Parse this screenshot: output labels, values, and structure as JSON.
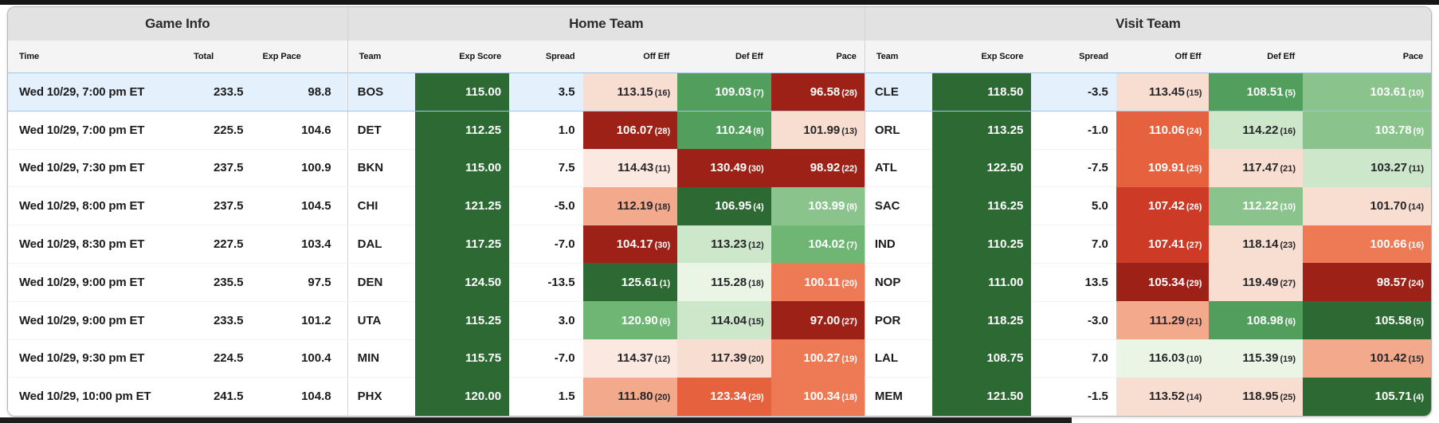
{
  "sections": [
    "Game Info",
    "Home Team",
    "Visit Team"
  ],
  "headers": {
    "game": [
      "Time",
      "Total",
      "Exp Pace"
    ],
    "team": [
      "Team",
      "Exp Score",
      "Spread",
      "Off Eff",
      "Def Eff",
      "Pace"
    ]
  },
  "palette": {
    "exp_score_bg": "#2d6a33",
    "selected_row_bg": "#e4f1fd",
    "selected_row_border": "#a2c6ea",
    "dark_green": "#2d6a33",
    "green": "#529e5c",
    "mid_green": "#6fb674",
    "light_green": "#8ac48c",
    "pale_green": "#cde7cb",
    "mint": "#eaf5e5",
    "dark_red": "#9d2116",
    "strong_red": "#cd3a25",
    "orange_red": "#e6613e",
    "orange": "#ee7a55",
    "salmon": "#f2a98c",
    "pale_pink": "#f8ddd1",
    "faint_pink": "#fbe9e1"
  },
  "rows": [
    {
      "selected": true,
      "time": "Wed 10/29, 7:00 pm ET",
      "total": "233.5",
      "exp_pace": "98.8",
      "home": {
        "team": "BOS",
        "exp_score": "115.00",
        "spread": "3.5",
        "off": {
          "v": "113.15",
          "r": "(16)",
          "bg": "#f8ddd1",
          "fg": "dark"
        },
        "def": {
          "v": "109.03",
          "r": "(7)",
          "bg": "#529e5c",
          "fg": "light"
        },
        "pace": {
          "v": "96.58",
          "r": "(28)",
          "bg": "#9d2116",
          "fg": "light"
        }
      },
      "visit": {
        "team": "CLE",
        "exp_score": "118.50",
        "spread": "-3.5",
        "off": {
          "v": "113.45",
          "r": "(15)",
          "bg": "#f8ddd1",
          "fg": "dark"
        },
        "def": {
          "v": "108.51",
          "r": "(5)",
          "bg": "#529e5c",
          "fg": "light"
        },
        "pace": {
          "v": "103.61",
          "r": "(10)",
          "bg": "#8ac48c",
          "fg": "light"
        }
      }
    },
    {
      "selected": false,
      "time": "Wed 10/29, 7:00 pm ET",
      "total": "225.5",
      "exp_pace": "104.6",
      "home": {
        "team": "DET",
        "exp_score": "112.25",
        "spread": "1.0",
        "off": {
          "v": "106.07",
          "r": "(28)",
          "bg": "#9d2116",
          "fg": "light"
        },
        "def": {
          "v": "110.24",
          "r": "(8)",
          "bg": "#529e5c",
          "fg": "light"
        },
        "pace": {
          "v": "101.99",
          "r": "(13)",
          "bg": "#f8ddd1",
          "fg": "dark"
        }
      },
      "visit": {
        "team": "ORL",
        "exp_score": "113.25",
        "spread": "-1.0",
        "off": {
          "v": "110.06",
          "r": "(24)",
          "bg": "#e6613e",
          "fg": "light"
        },
        "def": {
          "v": "114.22",
          "r": "(16)",
          "bg": "#cde7cb",
          "fg": "dark"
        },
        "pace": {
          "v": "103.78",
          "r": "(9)",
          "bg": "#8ac48c",
          "fg": "light"
        }
      }
    },
    {
      "selected": false,
      "time": "Wed 10/29, 7:30 pm ET",
      "total": "237.5",
      "exp_pace": "100.9",
      "home": {
        "team": "BKN",
        "exp_score": "115.00",
        "spread": "7.5",
        "off": {
          "v": "114.43",
          "r": "(11)",
          "bg": "#fbe9e1",
          "fg": "dark"
        },
        "def": {
          "v": "130.49",
          "r": "(30)",
          "bg": "#9d2116",
          "fg": "light"
        },
        "pace": {
          "v": "98.92",
          "r": "(22)",
          "bg": "#9d2116",
          "fg": "light"
        }
      },
      "visit": {
        "team": "ATL",
        "exp_score": "122.50",
        "spread": "-7.5",
        "off": {
          "v": "109.91",
          "r": "(25)",
          "bg": "#e6613e",
          "fg": "light"
        },
        "def": {
          "v": "117.47",
          "r": "(21)",
          "bg": "#f8ddd1",
          "fg": "dark"
        },
        "pace": {
          "v": "103.27",
          "r": "(11)",
          "bg": "#cde7cb",
          "fg": "dark"
        }
      }
    },
    {
      "selected": false,
      "time": "Wed 10/29, 8:00 pm ET",
      "total": "237.5",
      "exp_pace": "104.5",
      "home": {
        "team": "CHI",
        "exp_score": "121.25",
        "spread": "-5.0",
        "off": {
          "v": "112.19",
          "r": "(18)",
          "bg": "#f2a98c",
          "fg": "dark"
        },
        "def": {
          "v": "106.95",
          "r": "(4)",
          "bg": "#2d6a33",
          "fg": "light"
        },
        "pace": {
          "v": "103.99",
          "r": "(8)",
          "bg": "#8ac48c",
          "fg": "light"
        }
      },
      "visit": {
        "team": "SAC",
        "exp_score": "116.25",
        "spread": "5.0",
        "off": {
          "v": "107.42",
          "r": "(26)",
          "bg": "#cd3a25",
          "fg": "light"
        },
        "def": {
          "v": "112.22",
          "r": "(10)",
          "bg": "#8ac48c",
          "fg": "light"
        },
        "pace": {
          "v": "101.70",
          "r": "(14)",
          "bg": "#f8ddd1",
          "fg": "dark"
        }
      }
    },
    {
      "selected": false,
      "time": "Wed 10/29, 8:30 pm ET",
      "total": "227.5",
      "exp_pace": "103.4",
      "home": {
        "team": "DAL",
        "exp_score": "117.25",
        "spread": "-7.0",
        "off": {
          "v": "104.17",
          "r": "(30)",
          "bg": "#9d2116",
          "fg": "light"
        },
        "def": {
          "v": "113.23",
          "r": "(12)",
          "bg": "#cde7cb",
          "fg": "dark"
        },
        "pace": {
          "v": "104.02",
          "r": "(7)",
          "bg": "#6fb674",
          "fg": "light"
        }
      },
      "visit": {
        "team": "IND",
        "exp_score": "110.25",
        "spread": "7.0",
        "off": {
          "v": "107.41",
          "r": "(27)",
          "bg": "#cd3a25",
          "fg": "light"
        },
        "def": {
          "v": "118.14",
          "r": "(23)",
          "bg": "#f8ddd1",
          "fg": "dark"
        },
        "pace": {
          "v": "100.66",
          "r": "(16)",
          "bg": "#ee7a55",
          "fg": "light"
        }
      }
    },
    {
      "selected": false,
      "time": "Wed 10/29, 9:00 pm ET",
      "total": "235.5",
      "exp_pace": "97.5",
      "home": {
        "team": "DEN",
        "exp_score": "124.50",
        "spread": "-13.5",
        "off": {
          "v": "125.61",
          "r": "(1)",
          "bg": "#2d6a33",
          "fg": "light"
        },
        "def": {
          "v": "115.28",
          "r": "(18)",
          "bg": "#eaf5e5",
          "fg": "dark"
        },
        "pace": {
          "v": "100.11",
          "r": "(20)",
          "bg": "#ee7a55",
          "fg": "light"
        }
      },
      "visit": {
        "team": "NOP",
        "exp_score": "111.00",
        "spread": "13.5",
        "off": {
          "v": "105.34",
          "r": "(29)",
          "bg": "#9d2116",
          "fg": "light"
        },
        "def": {
          "v": "119.49",
          "r": "(27)",
          "bg": "#f8ddd1",
          "fg": "dark"
        },
        "pace": {
          "v": "98.57",
          "r": "(24)",
          "bg": "#9d2116",
          "fg": "light"
        }
      }
    },
    {
      "selected": false,
      "time": "Wed 10/29, 9:00 pm ET",
      "total": "233.5",
      "exp_pace": "101.2",
      "home": {
        "team": "UTA",
        "exp_score": "115.25",
        "spread": "3.0",
        "off": {
          "v": "120.90",
          "r": "(6)",
          "bg": "#6fb674",
          "fg": "light"
        },
        "def": {
          "v": "114.04",
          "r": "(15)",
          "bg": "#cde7cb",
          "fg": "dark"
        },
        "pace": {
          "v": "97.00",
          "r": "(27)",
          "bg": "#9d2116",
          "fg": "light"
        }
      },
      "visit": {
        "team": "POR",
        "exp_score": "118.25",
        "spread": "-3.0",
        "off": {
          "v": "111.29",
          "r": "(21)",
          "bg": "#f2a98c",
          "fg": "dark"
        },
        "def": {
          "v": "108.98",
          "r": "(6)",
          "bg": "#529e5c",
          "fg": "light"
        },
        "pace": {
          "v": "105.58",
          "r": "(5)",
          "bg": "#2d6a33",
          "fg": "light"
        }
      }
    },
    {
      "selected": false,
      "time": "Wed 10/29, 9:30 pm ET",
      "total": "224.5",
      "exp_pace": "100.4",
      "home": {
        "team": "MIN",
        "exp_score": "115.75",
        "spread": "-7.0",
        "off": {
          "v": "114.37",
          "r": "(12)",
          "bg": "#fbe9e1",
          "fg": "dark"
        },
        "def": {
          "v": "117.39",
          "r": "(20)",
          "bg": "#f8ddd1",
          "fg": "dark"
        },
        "pace": {
          "v": "100.27",
          "r": "(19)",
          "bg": "#ee7a55",
          "fg": "light"
        }
      },
      "visit": {
        "team": "LAL",
        "exp_score": "108.75",
        "spread": "7.0",
        "off": {
          "v": "116.03",
          "r": "(10)",
          "bg": "#eaf5e5",
          "fg": "dark"
        },
        "def": {
          "v": "115.39",
          "r": "(19)",
          "bg": "#eaf5e5",
          "fg": "dark"
        },
        "pace": {
          "v": "101.42",
          "r": "(15)",
          "bg": "#f2a98c",
          "fg": "dark"
        }
      }
    },
    {
      "selected": false,
      "time": "Wed 10/29, 10:00 pm ET",
      "total": "241.5",
      "exp_pace": "104.8",
      "home": {
        "team": "PHX",
        "exp_score": "120.00",
        "spread": "1.5",
        "off": {
          "v": "111.80",
          "r": "(20)",
          "bg": "#f2a98c",
          "fg": "dark"
        },
        "def": {
          "v": "123.34",
          "r": "(29)",
          "bg": "#e6613e",
          "fg": "light"
        },
        "pace": {
          "v": "100.34",
          "r": "(18)",
          "bg": "#ee7a55",
          "fg": "light"
        }
      },
      "visit": {
        "team": "MEM",
        "exp_score": "121.50",
        "spread": "-1.5",
        "off": {
          "v": "113.52",
          "r": "(14)",
          "bg": "#f8ddd1",
          "fg": "dark"
        },
        "def": {
          "v": "118.95",
          "r": "(25)",
          "bg": "#f8ddd1",
          "fg": "dark"
        },
        "pace": {
          "v": "105.71",
          "r": "(4)",
          "bg": "#2d6a33",
          "fg": "light"
        }
      }
    }
  ]
}
